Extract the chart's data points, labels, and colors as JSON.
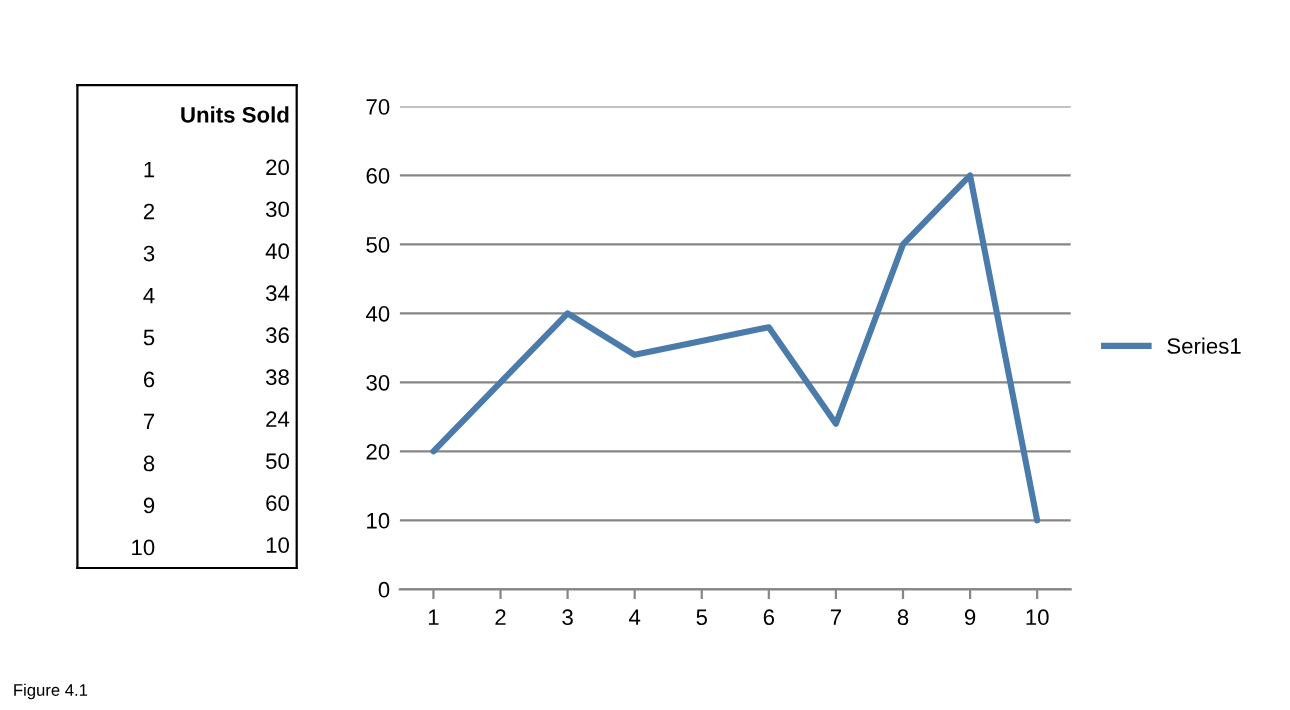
{
  "chart_data": [
    {
      "type": "heatmap",
      "categories": [
        "Units Sold"
      ],
      "y_categories": [
        "1",
        "2",
        "3",
        "4",
        "5",
        "6",
        "7",
        "8",
        "9",
        "10"
      ],
      "cells": [
        [
          20
        ],
        [
          30
        ],
        [
          40
        ],
        [
          34
        ],
        [
          36
        ],
        [
          38
        ],
        [
          24
        ],
        [
          50
        ],
        [
          60
        ],
        [
          10
        ]
      ],
      "data_labels": true
    },
    {
      "type": "line",
      "categories": [
        "1",
        "2",
        "3",
        "4",
        "5",
        "6",
        "7",
        "8",
        "9",
        "10"
      ],
      "series": [
        {
          "name": "Series1",
          "color": "#4a7bab",
          "values": [
            20,
            30,
            40,
            34,
            36,
            38,
            24,
            50,
            60,
            10
          ]
        }
      ],
      "ylim": [
        0,
        70
      ],
      "yticks": [
        0,
        10,
        20,
        30,
        40,
        50,
        60,
        70
      ],
      "grid": "y",
      "legend": "right",
      "marker": "none",
      "line_style": "solid",
      "annotations": [
        "Figure 4.1"
      ]
    }
  ]
}
